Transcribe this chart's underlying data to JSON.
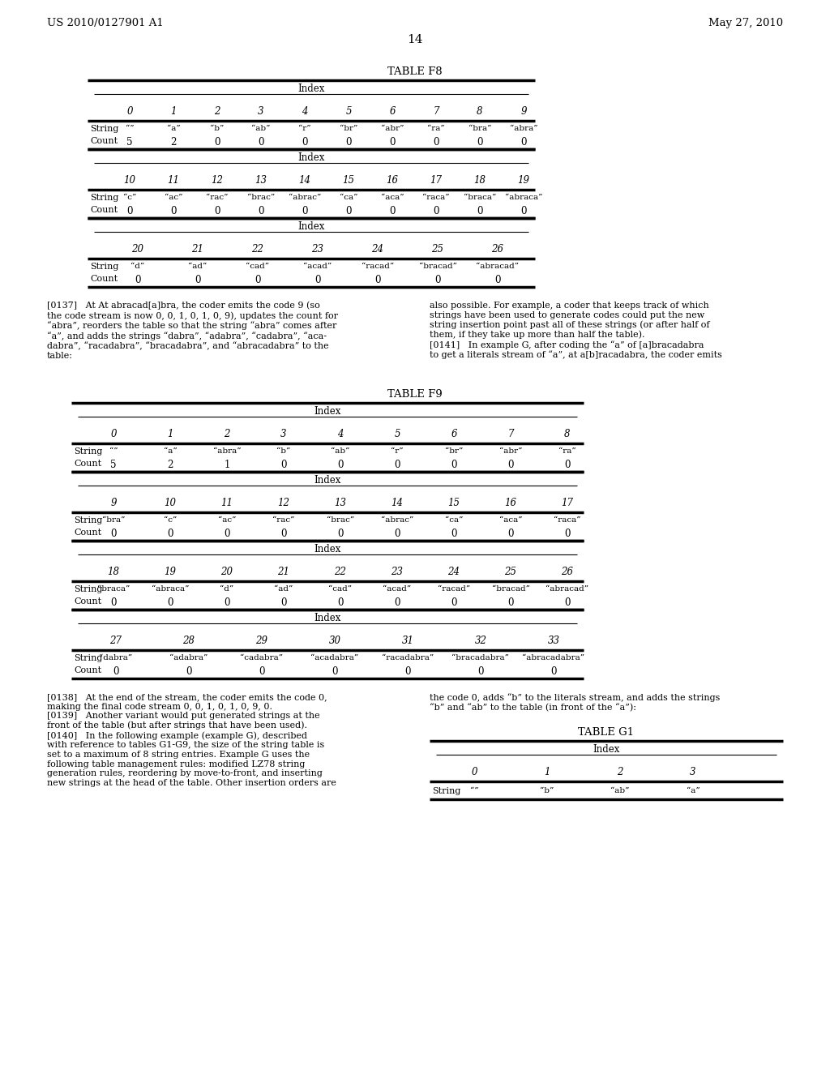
{
  "header_left": "US 2010/0127901 A1",
  "header_right": "May 27, 2010",
  "page_number": "14",
  "table_f8_title": "TABLE F8",
  "table_f9_title": "TABLE F9",
  "table_g1_title": "TABLE G1",
  "table_f8": {
    "sections": [
      {
        "indices": [
          "0",
          "1",
          "2",
          "3",
          "4",
          "5",
          "6",
          "7",
          "8",
          "9"
        ],
        "string_row": [
          "“”",
          "“a”",
          "“b”",
          "“ab”",
          "“r”",
          "“br”",
          "“abr”",
          "“ra”",
          "“bra”",
          "“abra”"
        ],
        "count_row": [
          "5",
          "2",
          "0",
          "0",
          "0",
          "0",
          "0",
          "0",
          "0",
          "0"
        ]
      },
      {
        "indices": [
          "10",
          "11",
          "12",
          "13",
          "14",
          "15",
          "16",
          "17",
          "18",
          "19"
        ],
        "string_row": [
          "“c”",
          "“ac”",
          "“rac”",
          "“brac”",
          "“abrac”",
          "“ca”",
          "“aca”",
          "“raca”",
          "“braca”",
          "“abraca”"
        ],
        "count_row": [
          "0",
          "0",
          "0",
          "0",
          "0",
          "0",
          "0",
          "0",
          "0",
          "0"
        ]
      },
      {
        "indices": [
          "20",
          "21",
          "22",
          "23",
          "24",
          "25",
          "26"
        ],
        "string_row": [
          "“d”",
          "“ad”",
          "“cad”",
          "“acad”",
          "“racad”",
          "“bracad”",
          "“abracad”"
        ],
        "count_row": [
          "0",
          "0",
          "0",
          "0",
          "0",
          "0",
          "0"
        ]
      }
    ]
  },
  "table_f9": {
    "sections": [
      {
        "indices": [
          "0",
          "1",
          "2",
          "3",
          "4",
          "5",
          "6",
          "7",
          "8"
        ],
        "string_row": [
          "“”",
          "“a”",
          "“abra”",
          "“b”",
          "“ab”",
          "“r”",
          "“br”",
          "“abr”",
          "“ra”"
        ],
        "count_row": [
          "5",
          "2",
          "1",
          "0",
          "0",
          "0",
          "0",
          "0",
          "0"
        ]
      },
      {
        "indices": [
          "9",
          "10",
          "11",
          "12",
          "13",
          "14",
          "15",
          "16",
          "17"
        ],
        "string_row": [
          "“bra”",
          "“c”",
          "“ac”",
          "“rac”",
          "“brac”",
          "“abrac”",
          "“ca”",
          "“aca”",
          "“raca”"
        ],
        "count_row": [
          "0",
          "0",
          "0",
          "0",
          "0",
          "0",
          "0",
          "0",
          "0"
        ]
      },
      {
        "indices": [
          "18",
          "19",
          "20",
          "21",
          "22",
          "23",
          "24",
          "25",
          "26"
        ],
        "string_row": [
          "“braca”",
          "“abraca”",
          "“d”",
          "“ad”",
          "“cad”",
          "“acad”",
          "“racad”",
          "“bracad”",
          "“abracad”"
        ],
        "count_row": [
          "0",
          "0",
          "0",
          "0",
          "0",
          "0",
          "0",
          "0",
          "0"
        ]
      },
      {
        "indices": [
          "27",
          "28",
          "29",
          "30",
          "31",
          "32",
          "33"
        ],
        "string_row": [
          "“dabra”",
          "“adabra”",
          "“cadabra”",
          "“acadabra”",
          "“racadabra”",
          "“bracadabra”",
          "“abracadabra”"
        ],
        "count_row": [
          "0",
          "0",
          "0",
          "0",
          "0",
          "0",
          "0"
        ]
      }
    ]
  },
  "table_g1": {
    "indices": [
      "0",
      "1",
      "2",
      "3"
    ],
    "string_row": [
      "“”",
      "“b”",
      "“ab”",
      "“a”"
    ]
  },
  "para137_left": "[0137]   At At abracad[a]bra, the coder emits the code 9 (so\nthe code stream is now 0, 0, 1, 0, 1, 0, 9), updates the count for\n“abra”, reorders the table so that the string “abra” comes after\n“a”, and adds the strings “dabra”, “adabra”, “cadabra”, “aca-\ndabra”, “racadabra”, “bracadabra”, and “abracadabra” to the\ntable:",
  "para137_right": "also possible. For example, a coder that keeps track of which\nstrings have been used to generate codes could put the new\nstring insertion point past all of these strings (or after half of\nthem, if they take up more than half the table).\n[0141]   In example G, after coding the “a” of [a]bracadabra\nto get a literals stream of “a”, at a[b]racadabra, the coder emits",
  "para_bottom_left": "[0138]   At the end of the stream, the coder emits the code 0,\nmaking the final code stream 0, 0, 1, 0, 1, 0, 9, 0.\n[0139]   Another variant would put generated strings at the\nfront of the table (but after strings that have been used).\n[0140]   In the following example (example G), described\nwith reference to tables G1-G9, the size of the string table is\nset to a maximum of 8 string entries. Example G uses the\nfollowing table management rules: modified LZ78 string\ngeneration rules, reordering by move-to-front, and inserting\nnew strings at the head of the table. Other insertion orders are",
  "para_bottom_right": "the code 0, adds “b” to the literals stream, and adds the strings\n“b” and “ab” to the table (in front of the “a”):"
}
